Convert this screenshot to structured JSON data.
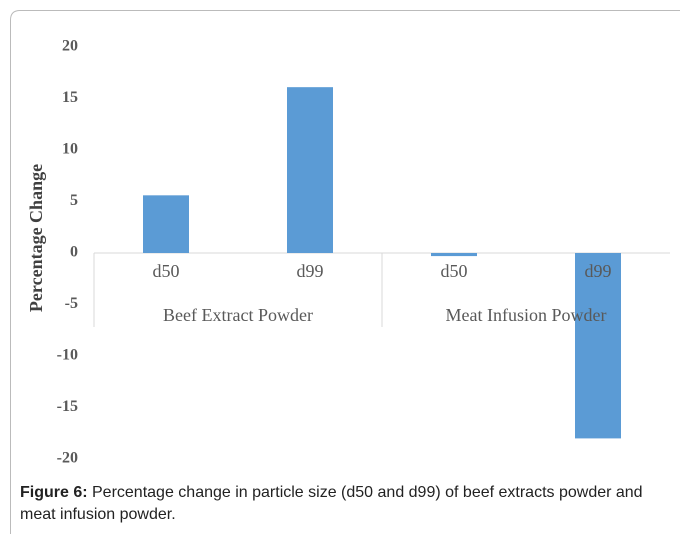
{
  "chart_data": {
    "type": "bar",
    "ylabel": "Percentage Change",
    "color": "#5b9bd5",
    "groups": [
      {
        "label": "Beef Extract Powder",
        "categories": [
          "d50",
          "d99"
        ],
        "values": [
          5.6,
          16.1
        ]
      },
      {
        "label": "Meat Infusion Powder",
        "categories": [
          "d50",
          "d99"
        ],
        "values": [
          -0.3,
          -18
        ]
      }
    ],
    "ylim": [
      -20,
      20
    ],
    "yticks": [
      -20,
      -15,
      -10,
      -5,
      0,
      5,
      10,
      15,
      20
    ],
    "grid": false
  },
  "caption": {
    "label": "Figure 6:",
    "text": " Percentage change in particle size (d50 and d99) of beef extracts powder and meat infusion powder."
  }
}
